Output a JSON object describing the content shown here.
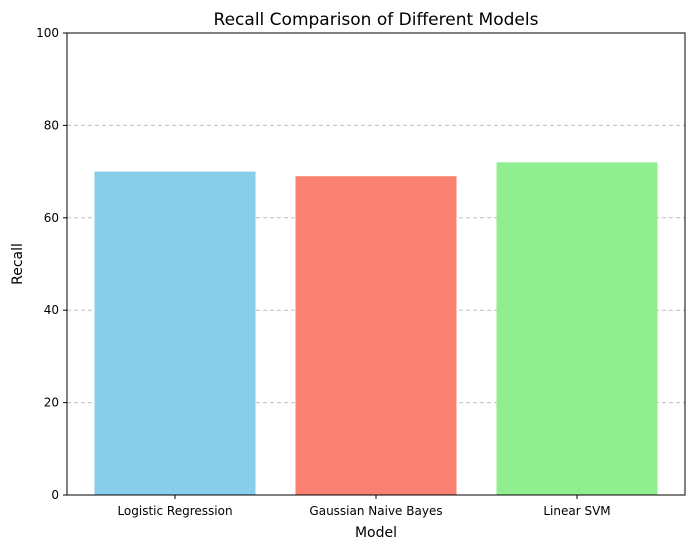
{
  "chart_data": {
    "type": "bar",
    "title": "Recall Comparison of Different Models",
    "xlabel": "Model",
    "ylabel": "Recall",
    "categories": [
      "Logistic Regression",
      "Gaussian Naive Bayes",
      "Linear SVM"
    ],
    "values": [
      70,
      69,
      72
    ],
    "colors": [
      "#87ceeb",
      "#fa8072",
      "#90ee90"
    ],
    "ylim": [
      0,
      100
    ],
    "yticks": [
      0,
      20,
      40,
      60,
      80,
      100
    ],
    "grid": "y-dashed",
    "legend": "none"
  }
}
